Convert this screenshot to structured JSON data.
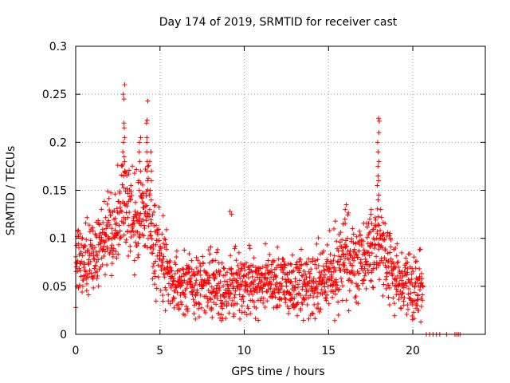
{
  "chart_data": {
    "type": "scatter",
    "title": "Day 174 of 2019, SRMTID for receiver cast",
    "xlabel": "GPS time / hours",
    "ylabel": "SRMTID / TECUs",
    "xlim": [
      0,
      24.3
    ],
    "ylim": [
      0,
      0.3
    ],
    "x_ticks": [
      0,
      5,
      10,
      15,
      20
    ],
    "x_tick_labels": [
      "0",
      "5",
      "10",
      "15",
      "20"
    ],
    "y_ticks": [
      0,
      0.05,
      0.1,
      0.15,
      0.2,
      0.25,
      0.3
    ],
    "y_tick_labels": [
      "0",
      "0.05",
      "0.1",
      "0.15",
      "0.2",
      "0.25",
      "0.3"
    ],
    "grid": true,
    "marker": "+",
    "color": "#ff0000",
    "sample_interval_hours": 0.025,
    "series": [
      {
        "name": "SRMTID",
        "trend": [
          [
            0.0,
            0.075
          ],
          [
            0.5,
            0.078
          ],
          [
            1.0,
            0.082
          ],
          [
            1.5,
            0.09
          ],
          [
            2.0,
            0.1
          ],
          [
            2.5,
            0.115
          ],
          [
            2.8,
            0.14
          ],
          [
            3.0,
            0.13
          ],
          [
            3.5,
            0.12
          ],
          [
            4.0,
            0.125
          ],
          [
            4.3,
            0.13
          ],
          [
            4.6,
            0.09
          ],
          [
            5.0,
            0.08
          ],
          [
            5.5,
            0.065
          ],
          [
            6.0,
            0.055
          ],
          [
            7.0,
            0.05
          ],
          [
            8.0,
            0.05
          ],
          [
            9.0,
            0.048
          ],
          [
            10.0,
            0.05
          ],
          [
            11.0,
            0.052
          ],
          [
            12.0,
            0.055
          ],
          [
            13.0,
            0.05
          ],
          [
            14.0,
            0.052
          ],
          [
            15.0,
            0.065
          ],
          [
            16.0,
            0.075
          ],
          [
            17.0,
            0.075
          ],
          [
            17.5,
            0.085
          ],
          [
            18.0,
            0.1
          ],
          [
            18.5,
            0.075
          ],
          [
            19.0,
            0.055
          ],
          [
            20.0,
            0.05
          ],
          [
            20.6,
            0.05
          ]
        ],
        "spread": 0.022,
        "spikes": [
          {
            "x": 2.85,
            "values": [
              0.26,
              0.25,
              0.245,
              0.22,
              0.215,
              0.205,
              0.2,
              0.19,
              0.185,
              0.18,
              0.17,
              0.165
            ]
          },
          {
            "x": 3.8,
            "values": [
              0.205,
              0.2,
              0.19,
              0.18,
              0.17,
              0.16
            ]
          },
          {
            "x": 4.25,
            "values": [
              0.243,
              0.223,
              0.22,
              0.205,
              0.2,
              0.19,
              0.18,
              0.175,
              0.16
            ]
          },
          {
            "x": 4.45,
            "values": [
              0.19,
              0.18,
              0.17,
              0.16,
              0.15,
              0.14
            ]
          },
          {
            "x": 9.2,
            "values": [
              0.128,
              0.125
            ]
          },
          {
            "x": 17.95,
            "values": [
              0.225,
              0.222,
              0.21,
              0.2,
              0.19,
              0.18,
              0.175,
              0.165,
              0.16,
              0.155,
              0.145,
              0.14
            ]
          },
          {
            "x": 17.5,
            "values": [
              0.13,
              0.125,
              0.12
            ]
          },
          {
            "x": 16.0,
            "values": [
              0.135,
              0.13,
              0.12
            ]
          }
        ],
        "zero_points": [
          20.8,
          21.0,
          21.2,
          21.4,
          21.6,
          22.0,
          22.5,
          22.6,
          22.7,
          22.8
        ]
      }
    ]
  }
}
